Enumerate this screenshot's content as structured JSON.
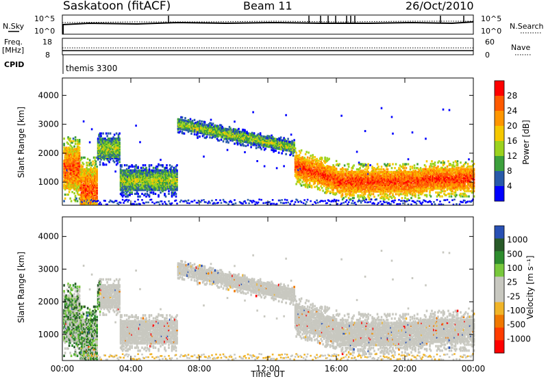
{
  "header": {
    "station": "Saskatoon (fitACF)",
    "beam": "Beam 11",
    "date": "26/Oct/2010"
  },
  "top_panels": {
    "sky_label": "N.Sky",
    "sky_ticks": [
      "10^5",
      "10^0"
    ],
    "search_label": "N.Search",
    "freq_label": "Freq.",
    "freq_unit": "[MHz]",
    "freq_ticks": [
      "18",
      "8"
    ],
    "nave_label": "Nave",
    "nave_ticks": [
      "60",
      "0"
    ],
    "cpid_label": "CPID",
    "cpid_value": "themis 3300"
  },
  "chart_data": [
    {
      "type": "heatmap",
      "name": "power",
      "ylabel": "Slant Range [km]",
      "yticks": [
        "4000",
        "3000",
        "2000",
        "1000"
      ],
      "ylim": [
        200,
        4600
      ],
      "xlim": [
        0,
        24
      ],
      "colorbar_label": "Power [dB]",
      "colorbar_ticks": [
        "28",
        "24",
        "20",
        "16",
        "12",
        "8",
        "4"
      ],
      "colors": [
        "#ff0000",
        "#ff5a00",
        "#ff9600",
        "#f5c800",
        "#9bd21e",
        "#3ca03c",
        "#285aaa",
        "#0000ff"
      ]
    },
    {
      "type": "heatmap",
      "name": "velocity",
      "ylabel": "Slant Range [km]",
      "yticks": [
        "4000",
        "3000",
        "2000",
        "1000"
      ],
      "ylim": [
        200,
        4600
      ],
      "xlim": [
        0,
        24
      ],
      "xlabel": "Time UT",
      "xticks": [
        "00:00",
        "04:00",
        "08:00",
        "12:00",
        "16:00",
        "20:00",
        "00:00"
      ],
      "colorbar_label": "Velocity [m s⁻¹]",
      "colorbar_ticks": [
        "1000",
        "500",
        "100",
        "25",
        "-25",
        "-100",
        "-500",
        "-1000"
      ],
      "colors": [
        "#2850b4",
        "#285a28",
        "#2d8c2d",
        "#78c83c",
        "#c8c8c0",
        "#c8c8c0",
        "#f0b428",
        "#f07800",
        "#ff3c00",
        "#ff0000"
      ]
    }
  ]
}
